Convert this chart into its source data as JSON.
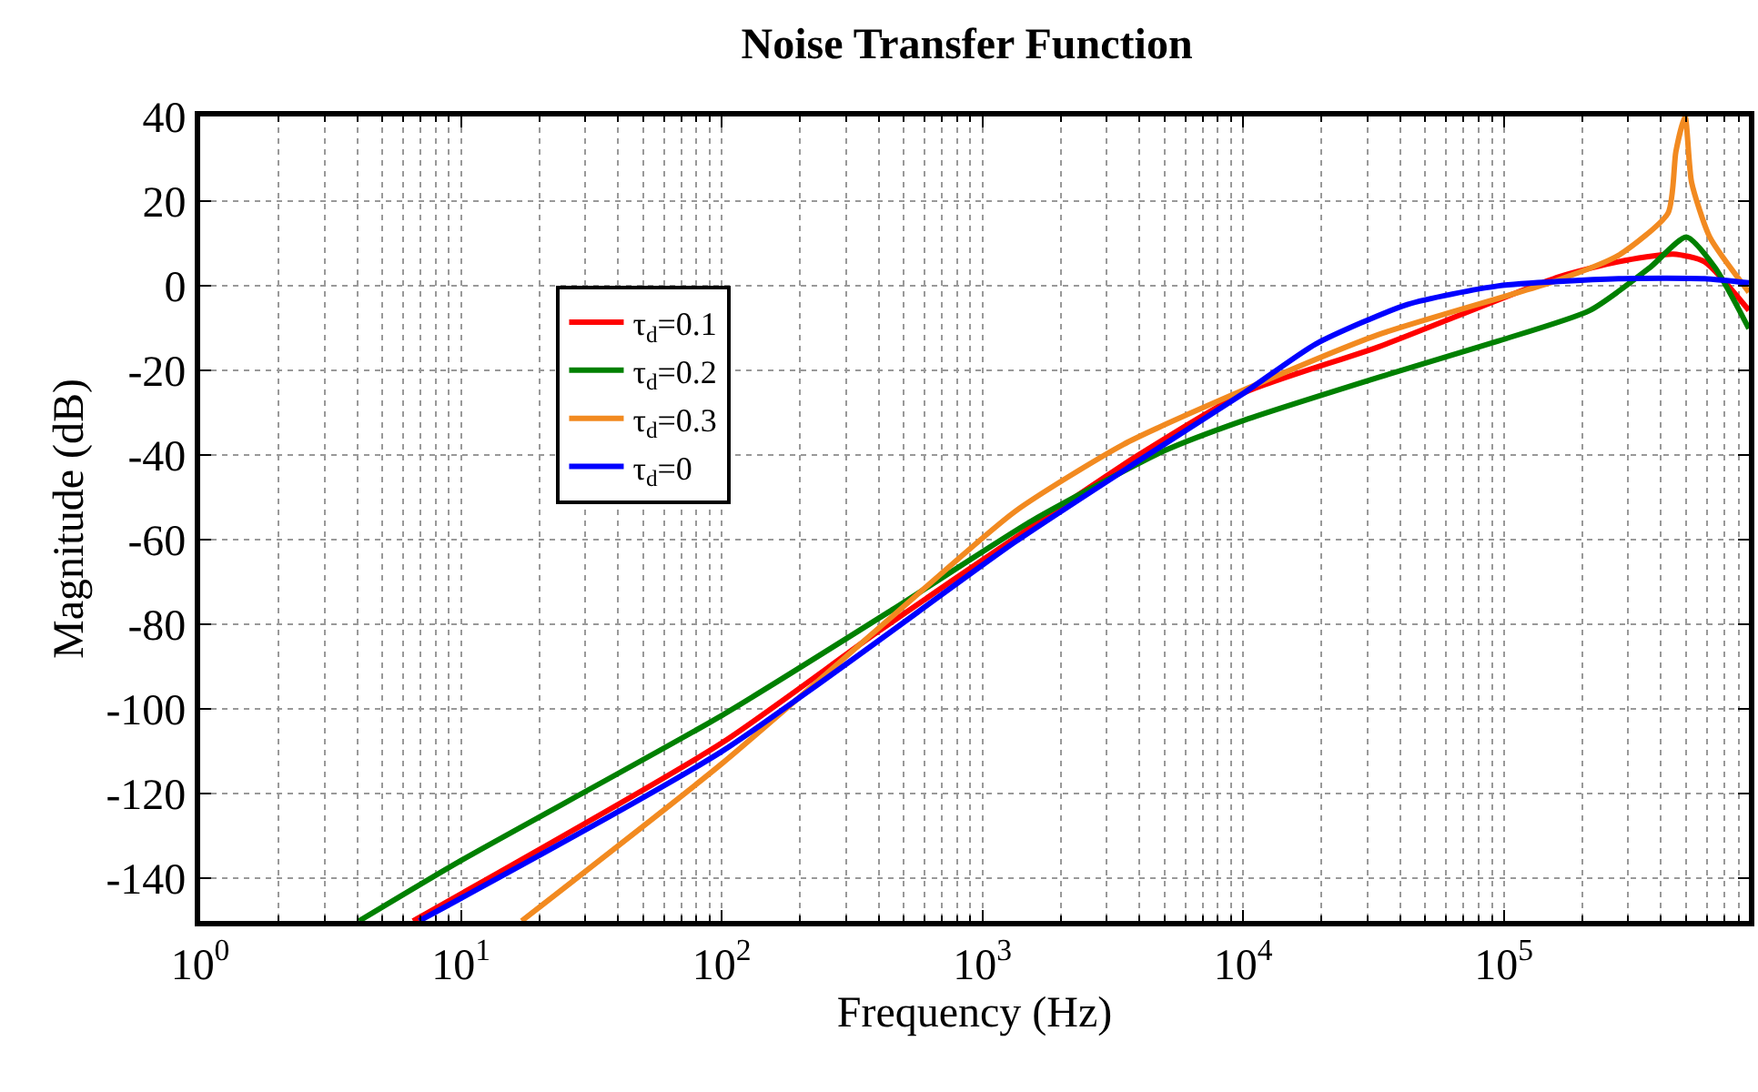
{
  "chart_data": {
    "type": "line",
    "title": "Noise Transfer Function",
    "xlabel": "Frequency (Hz)",
    "ylabel": "Magnitude (dB)",
    "log": "x",
    "grid": true,
    "legend": "top left",
    "line_style": "solid",
    "marker": "none",
    "xlim": [
      1,
      871000
    ],
    "ylim": [
      -150,
      40
    ],
    "xticks": [
      {
        "value": 1,
        "label": "10$^{0}$"
      },
      {
        "value": 10,
        "label": "10$^{1}$"
      },
      {
        "value": 100,
        "label": "10$^{2}$"
      },
      {
        "value": 1000,
        "label": "10$^{3}$"
      },
      {
        "value": 10000,
        "label": "10$^{4}$"
      },
      {
        "value": 100000,
        "label": "10$^{5}$"
      }
    ],
    "yticks": [
      -140,
      -120,
      -100,
      -80,
      -60,
      -40,
      -20,
      0,
      20,
      40
    ],
    "series": [
      {
        "name": "τ$_{d}$=0.1",
        "color": "#ff0000",
        "x": [
          6.55,
          100,
          389,
          1549,
          3890,
          10140,
          33110,
          162200,
          275400,
          446700,
          588800,
          871000
        ],
        "values": [
          -150,
          -108,
          -82.1,
          -56.8,
          -40.3,
          -25.2,
          -14.4,
          2.1,
          5.7,
          7.5,
          5.7,
          -5.8
        ]
      },
      {
        "name": "τ$_{d}$=0.2",
        "color": "#008000",
        "x": [
          4.07,
          9.77,
          100,
          457,
          1549,
          5012,
          10140,
          33110,
          95500,
          213800,
          363100,
          501200,
          645700,
          871000
        ],
        "values": [
          -150,
          -136.1,
          -101.5,
          -76.3,
          -55.5,
          -38.9,
          -31.7,
          -21.6,
          -13,
          -5.8,
          4.3,
          11.5,
          4.3,
          -10.1
        ]
      },
      {
        "name": "τ$_{d}$=0.3",
        "color": "#f28a20",
        "x": [
          17.1,
          100,
          457,
          1334,
          3467,
          10140,
          33110,
          162200,
          275400,
          426600,
          457100,
          495500,
          524800,
          616600,
          871000
        ],
        "values": [
          -150,
          -112.9,
          -77.8,
          -53.3,
          -37.5,
          -24.5,
          -11.5,
          1.4,
          7.2,
          17.2,
          31.7,
          40,
          24.5,
          11.5,
          -1.5
        ]
      },
      {
        "name": "τ$_{d}$=0",
        "color": "#0000ff",
        "x": [
          6.92,
          100,
          1334,
          3890,
          10140,
          19050,
          42660,
          95500,
          275400,
          588800,
          871000
        ],
        "values": [
          -150,
          -110,
          -60.5,
          -41.7,
          -25.2,
          -13.7,
          -4.4,
          0,
          1.7,
          1.7,
          0.7
        ]
      }
    ]
  }
}
